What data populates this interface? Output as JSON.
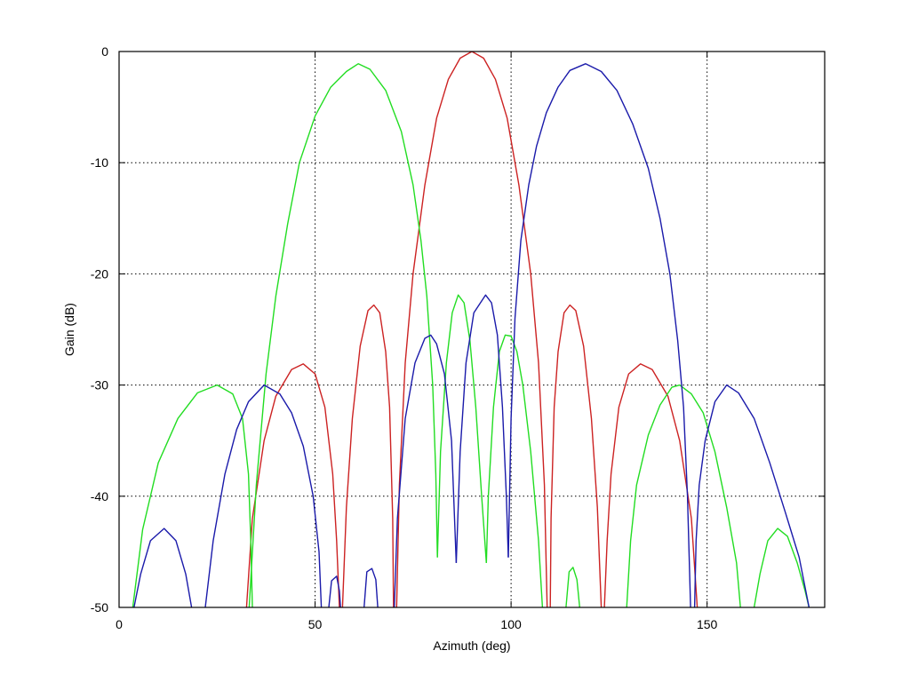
{
  "chart_data": {
    "type": "line",
    "title": "",
    "xlabel": "Azimuth (deg)",
    "ylabel": "Gain (dB)",
    "xlim": [
      0,
      180
    ],
    "ylim": [
      -50,
      0
    ],
    "x_ticks": [
      0,
      50,
      100,
      150
    ],
    "x_tick_labels": [
      "0",
      "50",
      "100",
      "150"
    ],
    "y_ticks": [
      0,
      -10,
      -20,
      -30,
      -40,
      -50
    ],
    "y_tick_labels": [
      "0",
      "-10",
      "-20",
      "-30",
      "-40",
      "-50"
    ],
    "grid": true,
    "legend": "none",
    "series": [
      {
        "color": "#cc2222",
        "segments": [
          [
            [
              32.5,
              -50
            ],
            [
              34,
              -42
            ],
            [
              37,
              -35
            ],
            [
              40,
              -31
            ],
            [
              44,
              -28.6
            ],
            [
              47,
              -28.1
            ],
            [
              50,
              -29
            ],
            [
              52.5,
              -32
            ],
            [
              54.5,
              -38
            ],
            [
              55.5,
              -44
            ],
            [
              56.2,
              -50
            ]
          ],
          [
            [
              57,
              -50
            ],
            [
              58,
              -41
            ],
            [
              59.5,
              -33
            ],
            [
              61.5,
              -26.5
            ],
            [
              63.5,
              -23.3
            ],
            [
              65,
              -22.8
            ],
            [
              66.5,
              -23.5
            ],
            [
              68,
              -27
            ],
            [
              69,
              -32
            ],
            [
              69.8,
              -42
            ],
            [
              70,
              -50
            ]
          ],
          [
            [
              70.8,
              -50
            ],
            [
              71.5,
              -39
            ],
            [
              73,
              -28
            ],
            [
              75,
              -20
            ],
            [
              78,
              -12
            ],
            [
              81,
              -6
            ],
            [
              84,
              -2.5
            ],
            [
              87,
              -0.6
            ],
            [
              90,
              0
            ],
            [
              93,
              -0.6
            ],
            [
              96,
              -2.5
            ],
            [
              99,
              -6
            ],
            [
              102,
              -12
            ],
            [
              105,
              -20
            ],
            [
              107,
              -28
            ],
            [
              108.5,
              -39
            ],
            [
              109.2,
              -50
            ]
          ],
          [
            [
              110,
              -50
            ],
            [
              110.2,
              -42
            ],
            [
              111,
              -32
            ],
            [
              112,
              -27
            ],
            [
              113.5,
              -23.5
            ],
            [
              115,
              -22.8
            ],
            [
              116.5,
              -23.3
            ],
            [
              118.5,
              -26.5
            ],
            [
              120.5,
              -33
            ],
            [
              122,
              -41
            ],
            [
              123,
              -50
            ]
          ],
          [
            [
              123.8,
              -50
            ],
            [
              124.5,
              -44
            ],
            [
              125.5,
              -38
            ],
            [
              127.5,
              -32
            ],
            [
              130,
              -29
            ],
            [
              133,
              -28.1
            ],
            [
              136,
              -28.6
            ],
            [
              140,
              -31
            ],
            [
              143,
              -35
            ],
            [
              146,
              -42
            ],
            [
              147.5,
              -50
            ]
          ]
        ]
      },
      {
        "color": "#22dd22",
        "segments": [
          [
            [
              3.5,
              -50
            ],
            [
              6,
              -43
            ],
            [
              10,
              -37
            ],
            [
              15,
              -33
            ],
            [
              20,
              -30.7
            ],
            [
              25,
              -30
            ],
            [
              29,
              -30.8
            ],
            [
              31.5,
              -33
            ],
            [
              33,
              -38
            ],
            [
              33.6,
              -44
            ],
            [
              34,
              -50
            ]
          ],
          [
            [
              33.2,
              -50
            ],
            [
              35,
              -39
            ],
            [
              37.5,
              -29
            ],
            [
              40,
              -22
            ],
            [
              43,
              -15.5
            ],
            [
              46,
              -10
            ],
            [
              50,
              -5.8
            ],
            [
              54,
              -3.2
            ],
            [
              58,
              -1.8
            ],
            [
              61,
              -1.1
            ],
            [
              64,
              -1.6
            ],
            [
              68,
              -3.5
            ],
            [
              72,
              -7.2
            ],
            [
              75,
              -12
            ],
            [
              77,
              -17
            ],
            [
              78.5,
              -22
            ],
            [
              80,
              -30
            ],
            [
              80.8,
              -38
            ],
            [
              81.2,
              -45.5
            ]
          ],
          [
            [
              81.2,
              -45.5
            ],
            [
              82,
              -36
            ],
            [
              83.5,
              -28
            ],
            [
              85,
              -23.5
            ],
            [
              86.5,
              -21.9
            ],
            [
              88,
              -22.6
            ],
            [
              89.5,
              -26
            ],
            [
              91,
              -32
            ],
            [
              92.5,
              -40
            ],
            [
              93.7,
              -46
            ]
          ],
          [
            [
              93.7,
              -46
            ],
            [
              94.2,
              -40
            ],
            [
              95.5,
              -32
            ],
            [
              97,
              -27
            ],
            [
              98.5,
              -25.5
            ],
            [
              100,
              -25.6
            ],
            [
              101.5,
              -27
            ],
            [
              103,
              -30
            ],
            [
              105,
              -36
            ],
            [
              107,
              -44
            ],
            [
              108,
              -50
            ]
          ],
          [
            [
              114,
              -50
            ],
            [
              114.8,
              -46.8
            ],
            [
              115.8,
              -46.4
            ],
            [
              116.8,
              -47.5
            ],
            [
              117.5,
              -50
            ]
          ],
          [
            [
              129.5,
              -50
            ],
            [
              130.5,
              -44
            ],
            [
              132,
              -39
            ],
            [
              135,
              -34.5
            ],
            [
              138,
              -31.8
            ],
            [
              141,
              -30.2
            ],
            [
              143,
              -30
            ],
            [
              146,
              -30.8
            ],
            [
              149,
              -32.5
            ],
            [
              152,
              -36
            ],
            [
              155,
              -41
            ],
            [
              157.5,
              -46
            ],
            [
              158.5,
              -50
            ]
          ],
          [
            [
              162,
              -50
            ],
            [
              163.5,
              -47
            ],
            [
              165.5,
              -44
            ],
            [
              168,
              -42.9
            ],
            [
              170.5,
              -43.6
            ],
            [
              173,
              -46
            ],
            [
              175,
              -48.5
            ],
            [
              176,
              -50
            ]
          ]
        ]
      },
      {
        "color": "#1a1aaa",
        "segments": [
          [
            [
              3.8,
              -50
            ],
            [
              5.5,
              -47
            ],
            [
              8,
              -44
            ],
            [
              11.5,
              -42.9
            ],
            [
              14.5,
              -44
            ],
            [
              17,
              -47
            ],
            [
              18.5,
              -50
            ]
          ],
          [
            [
              22,
              -50
            ],
            [
              24,
              -44
            ],
            [
              27,
              -38
            ],
            [
              30,
              -34
            ],
            [
              33,
              -31.5
            ],
            [
              37,
              -30
            ],
            [
              41,
              -30.8
            ],
            [
              44,
              -32.5
            ],
            [
              47,
              -35.5
            ],
            [
              49.5,
              -40
            ],
            [
              51,
              -45
            ],
            [
              51.6,
              -50
            ]
          ],
          [
            [
              53.5,
              -50
            ],
            [
              54.2,
              -47.6
            ],
            [
              55.5,
              -47.2
            ],
            [
              56.2,
              -48.5
            ],
            [
              56.5,
              -50
            ]
          ],
          [
            [
              62.5,
              -50
            ],
            [
              63.2,
              -46.8
            ],
            [
              64.5,
              -46.5
            ],
            [
              65.5,
              -47.5
            ],
            [
              66,
              -50
            ]
          ],
          [
            [
              70.2,
              -50
            ],
            [
              71,
              -42
            ],
            [
              73,
              -33
            ],
            [
              75.5,
              -28
            ],
            [
              78,
              -25.8
            ],
            [
              79.5,
              -25.5
            ],
            [
              81,
              -26.3
            ],
            [
              83,
              -29
            ],
            [
              84.8,
              -35
            ],
            [
              86,
              -46
            ]
          ],
          [
            [
              86,
              -46
            ],
            [
              87,
              -36
            ],
            [
              88.5,
              -28
            ],
            [
              90.5,
              -23.5
            ],
            [
              93.5,
              -21.9
            ],
            [
              95,
              -22.6
            ],
            [
              96.5,
              -25.5
            ],
            [
              97.8,
              -32
            ],
            [
              98.8,
              -40
            ],
            [
              99.3,
              -45.5
            ]
          ],
          [
            [
              99.3,
              -45.5
            ],
            [
              100,
              -33
            ],
            [
              101,
              -24
            ],
            [
              102.5,
              -17
            ],
            [
              104.5,
              -12
            ],
            [
              106.5,
              -8.5
            ],
            [
              109,
              -5.5
            ],
            [
              112,
              -3.2
            ],
            [
              115,
              -1.7
            ],
            [
              119,
              -1.1
            ],
            [
              123,
              -1.8
            ],
            [
              127,
              -3.5
            ],
            [
              131,
              -6.5
            ],
            [
              135,
              -10.5
            ],
            [
              138,
              -15
            ],
            [
              140.5,
              -20
            ],
            [
              142.5,
              -26
            ],
            [
              144,
              -32
            ],
            [
              145,
              -40
            ],
            [
              145.8,
              -50
            ]
          ],
          [
            [
              146.8,
              -50
            ],
            [
              147.2,
              -44
            ],
            [
              148,
              -39
            ],
            [
              149.5,
              -35
            ],
            [
              152,
              -31.5
            ],
            [
              155,
              -30
            ],
            [
              158,
              -30.7
            ],
            [
              162,
              -33
            ],
            [
              166,
              -37
            ],
            [
              170,
              -41.5
            ],
            [
              173.5,
              -45.5
            ],
            [
              176,
              -50
            ]
          ]
        ]
      }
    ]
  }
}
